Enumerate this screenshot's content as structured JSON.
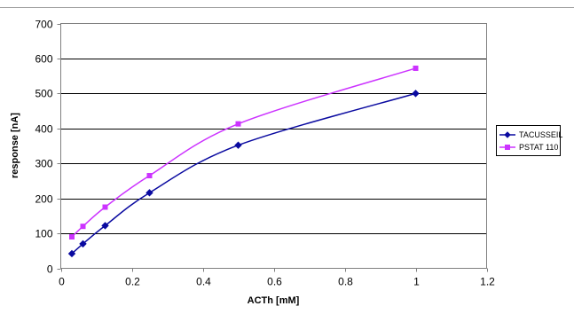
{
  "chart_data": {
    "type": "line",
    "title": "",
    "xlabel": "ACTh [mM]",
    "ylabel": "response [nA]",
    "xlim": [
      0,
      1.2
    ],
    "ylim": [
      0,
      700
    ],
    "x_ticks": [
      0,
      0.2,
      0.4,
      0.6,
      0.8,
      1,
      1.2
    ],
    "x_tick_labels": [
      "0",
      "0.2",
      "0.4",
      "0.6",
      "0.8",
      "1",
      "1.2"
    ],
    "y_ticks": [
      0,
      100,
      200,
      300,
      400,
      500,
      600,
      700
    ],
    "y_tick_labels": [
      "0",
      "100",
      "200",
      "300",
      "400",
      "500",
      "600",
      "700"
    ],
    "grid": "horizontal gridlines",
    "legend_position": "right",
    "series": [
      {
        "name": "TACUSSEIL",
        "color": "#0a0aa0",
        "marker": "diamond",
        "points": [
          {
            "x": 0.03125,
            "y": 42
          },
          {
            "x": 0.0625,
            "y": 70
          },
          {
            "x": 0.125,
            "y": 122
          },
          {
            "x": 0.25,
            "y": 216
          },
          {
            "x": 0.5,
            "y": 352
          },
          {
            "x": 1,
            "y": 500
          }
        ]
      },
      {
        "name": "PSTAT 110",
        "color": "#cc33ff",
        "marker": "square",
        "points": [
          {
            "x": 0.03125,
            "y": 90
          },
          {
            "x": 0.0625,
            "y": 120
          },
          {
            "x": 0.125,
            "y": 175
          },
          {
            "x": 0.25,
            "y": 265
          },
          {
            "x": 0.5,
            "y": 413
          },
          {
            "x": 1,
            "y": 572
          }
        ]
      }
    ]
  }
}
